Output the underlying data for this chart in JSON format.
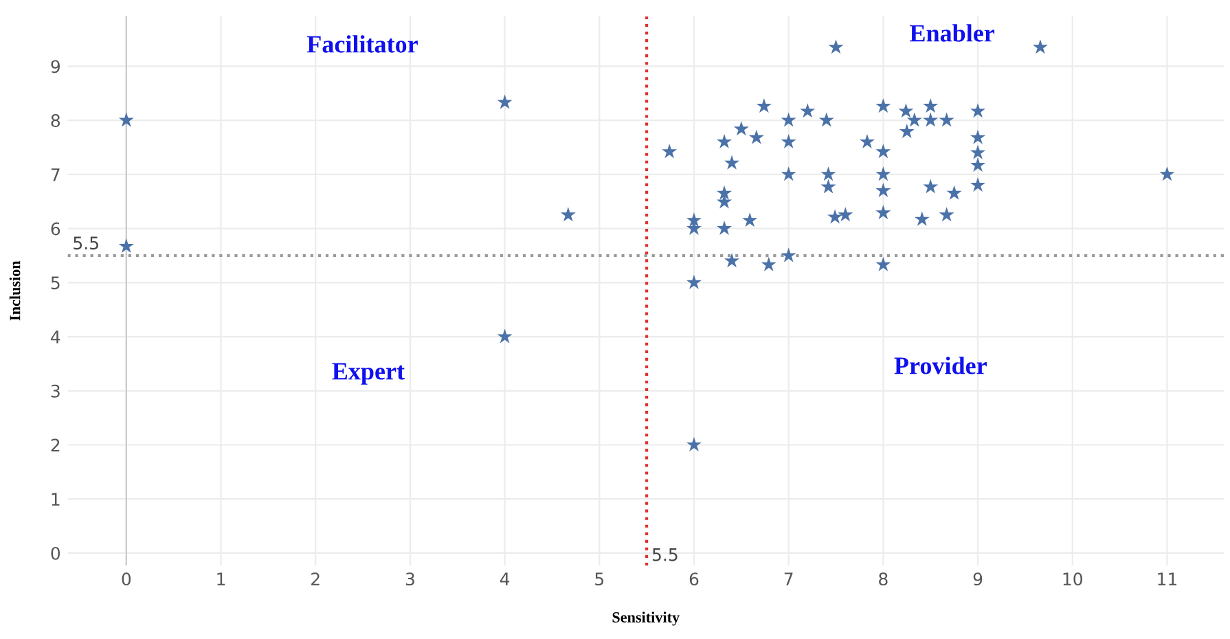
{
  "chart_data": {
    "type": "scatter",
    "xlabel": "Sensitivity",
    "ylabel": "Inclusion",
    "marker": "star",
    "grid": true,
    "legend": false,
    "xlim": [
      -0.62,
      11.6
    ],
    "ylim": [
      -0.23,
      9.93
    ],
    "xticks": [
      0,
      1,
      2,
      3,
      4,
      5,
      6,
      7,
      8,
      9,
      10,
      11
    ],
    "yticks": [
      0,
      1,
      2,
      3,
      4,
      5,
      6,
      7,
      8,
      9
    ],
    "ref_lines": [
      {
        "axis": "x",
        "value": 5.5,
        "label": "5.5",
        "color": "#e03030",
        "line_style": "dotted"
      },
      {
        "axis": "y",
        "value": 5.5,
        "label": "5.5",
        "color": "#999999",
        "line_style": "dotted"
      }
    ],
    "annotations": [
      "Facilitator",
      "Enabler",
      "Expert",
      "Provider"
    ],
    "series": [
      {
        "color": "#4a72a8",
        "x": [
          0,
          0,
          4,
          4.67,
          4,
          6,
          7.5,
          9.66,
          6.74,
          7.2,
          7.0,
          7.4,
          8.0,
          8.24,
          8.33,
          8.5,
          8.5,
          8.67,
          9.0,
          6.5,
          6.66,
          6.32,
          7.0,
          8.25,
          7.83,
          5.74,
          8.0,
          9.0,
          9.0,
          9.0,
          6.4,
          7.0,
          7.42,
          8.0,
          11.0,
          7.42,
          8.0,
          8.5,
          8.75,
          9.0,
          6.32,
          6.32,
          6.0,
          6.0,
          6.32,
          6.59,
          7.49,
          7.6,
          8.0,
          8.41,
          8.67,
          6.4,
          6.79,
          7.0,
          8.0,
          6.0
        ],
        "values": [
          8,
          5.67,
          8.33,
          6.25,
          4,
          2,
          9.35,
          9.35,
          8.26,
          8.17,
          8.0,
          8.0,
          8.26,
          8.17,
          8.0,
          8.26,
          8.0,
          8.0,
          8.17,
          7.84,
          7.68,
          7.6,
          7.6,
          7.79,
          7.6,
          7.42,
          7.42,
          7.68,
          7.4,
          7.17,
          7.21,
          7.0,
          7.0,
          7.0,
          7.0,
          6.77,
          6.7,
          6.77,
          6.65,
          6.8,
          6.65,
          6.49,
          6.15,
          6.0,
          6.0,
          6.15,
          6.21,
          6.25,
          6.29,
          6.17,
          6.25,
          5.4,
          5.33,
          5.5,
          5.33,
          5.0
        ]
      }
    ]
  }
}
